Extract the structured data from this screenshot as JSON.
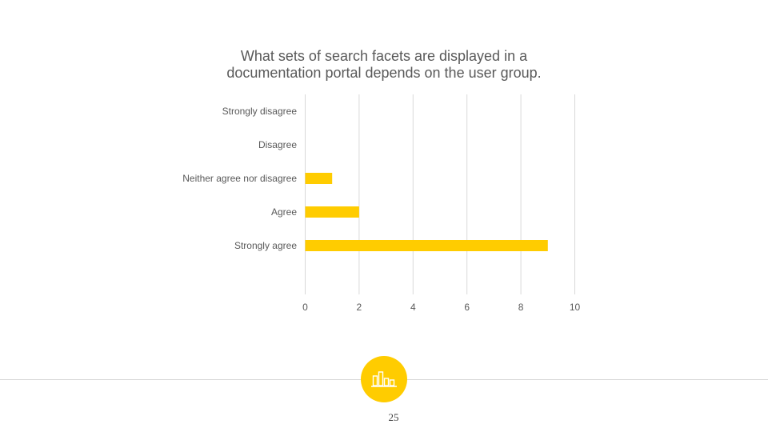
{
  "slide": {
    "page_number": "25",
    "badge_icon": "bar-chart-icon",
    "accent_color": "#FFCC00"
  },
  "chart_data": {
    "type": "bar",
    "orientation": "horizontal",
    "title_lines": [
      "What sets of search facets are displayed in a",
      "documentation portal depends on the user group."
    ],
    "categories": [
      "Strongly disagree",
      "Disagree",
      "Neither agree nor disagree",
      "Agree",
      "Strongly agree"
    ],
    "values": [
      0,
      0,
      1,
      2,
      9
    ],
    "xlim": [
      0,
      10
    ],
    "xticks": [
      "0",
      "2",
      "4",
      "6",
      "8",
      "10"
    ],
    "grid": true,
    "bar_color": "#FFCC00"
  }
}
